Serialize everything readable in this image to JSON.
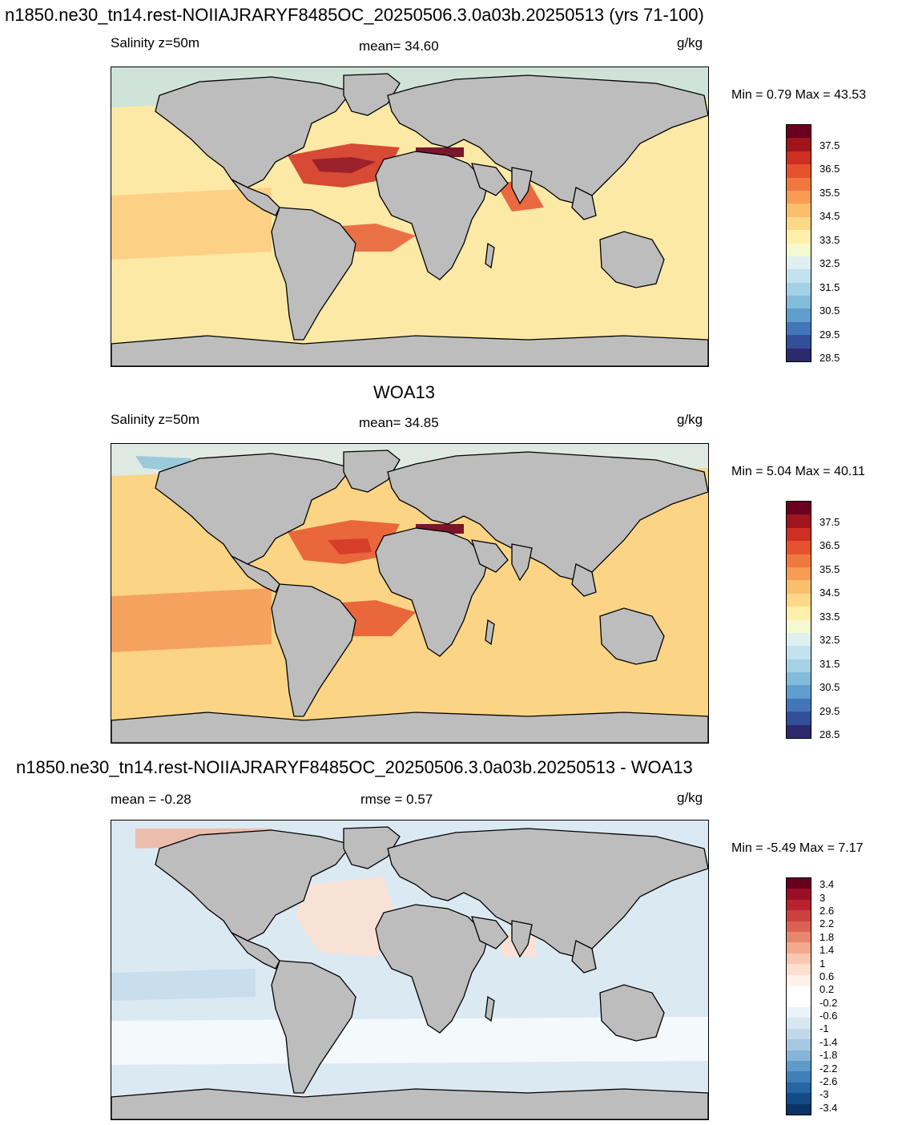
{
  "panels": [
    {
      "title": "n1850.ne30_tn14.rest-NOIIAJRARYF8485OC_20250506.3.0a03b.20250513 (yrs 71-100)",
      "left_label": "Salinity z=50m",
      "center_label": "mean=  34.60",
      "units": "g/kg",
      "minmax": "Min =   0.79 Max =  43.53",
      "bg": "#fde9a6",
      "colorbar": {
        "colors": [
          "#6b0020",
          "#a0141e",
          "#cf2e22",
          "#e5532e",
          "#f0783f",
          "#f89c55",
          "#fbbe6c",
          "#fdd889",
          "#fef0ab",
          "#f6f9cf",
          "#def0ef",
          "#c2e2ef",
          "#a4d1e6",
          "#82bbdc",
          "#5f9dcd",
          "#4276b8",
          "#334f9b",
          "#2c2a6c"
        ],
        "labels": [
          "37.5",
          "36.5",
          "35.5",
          "34.5",
          "33.5",
          "32.5",
          "31.5",
          "30.5",
          "29.5",
          "28.5"
        ]
      }
    },
    {
      "title": "WOA13",
      "left_label": "Salinity z=50m",
      "center_label": "mean=  34.85",
      "units": "g/kg",
      "minmax": "Min =   5.04 Max =  40.11",
      "bg": "#fcd485",
      "colorbar": {
        "colors": [
          "#6b0020",
          "#a0141e",
          "#cf2e22",
          "#e5532e",
          "#f0783f",
          "#f89c55",
          "#fbbe6c",
          "#fdd889",
          "#fef0ab",
          "#f6f9cf",
          "#def0ef",
          "#c2e2ef",
          "#a4d1e6",
          "#82bbdc",
          "#5f9dcd",
          "#4276b8",
          "#334f9b",
          "#2c2a6c"
        ],
        "labels": [
          "37.5",
          "36.5",
          "35.5",
          "34.5",
          "33.5",
          "32.5",
          "31.5",
          "30.5",
          "29.5",
          "28.5"
        ]
      }
    },
    {
      "title": "n1850.ne30_tn14.rest-NOIIAJRARYF8485OC_20250506.3.0a03b.20250513 - WOA13",
      "left_label": "mean =  -0.28",
      "center_label": "rmse =    0.57",
      "units": "g/kg",
      "minmax": "Min =  -5.49 Max =   7.17",
      "bg": "#dbe9f3",
      "colorbar": {
        "colors": [
          "#67001f",
          "#9a0f26",
          "#b8232f",
          "#cc4140",
          "#da6253",
          "#e8866d",
          "#f3a98d",
          "#f9c8b0",
          "#fde0d0",
          "#fff0e8",
          "#ffffff",
          "#ffffff",
          "#eaf2f8",
          "#d6e7f1",
          "#bfd9ea",
          "#a5c8e1",
          "#85b4d6",
          "#5f9bc9",
          "#3e7fb8",
          "#2565a4",
          "#154a88",
          "#0b3366"
        ],
        "labels": [
          "3.4",
          "3",
          "2.6",
          "2.2",
          "1.8",
          "1.4",
          "1",
          "0.6",
          "0.2",
          "-0.2",
          "-0.6",
          "-1",
          "-1.4",
          "-1.8",
          "-2.2",
          "-2.6",
          "-3",
          "-3.4"
        ]
      }
    }
  ]
}
